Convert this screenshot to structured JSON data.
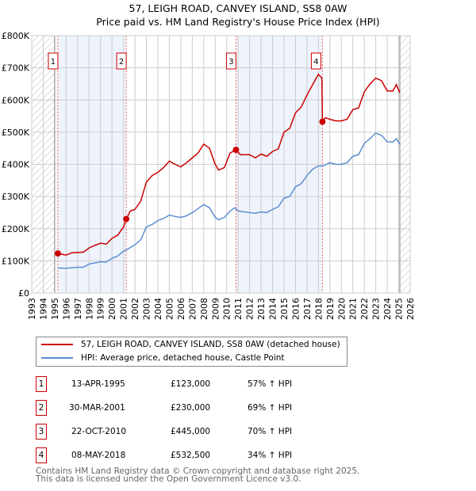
{
  "chart_data": {
    "type": "line",
    "title": "57, LEIGH ROAD, CANVEY ISLAND, SS8 0AW",
    "subtitle": "Price paid vs. HM Land Registry's House Price Index (HPI)",
    "xlim": [
      1993,
      2026
    ],
    "ylim": [
      0,
      800000
    ],
    "y_ticks": [
      {
        "v": 0,
        "label": "£0"
      },
      {
        "v": 100000,
        "label": "£100K"
      },
      {
        "v": 200000,
        "label": "£200K"
      },
      {
        "v": 300000,
        "label": "£300K"
      },
      {
        "v": 400000,
        "label": "£400K"
      },
      {
        "v": 500000,
        "label": "£500K"
      },
      {
        "v": 600000,
        "label": "£600K"
      },
      {
        "v": 700000,
        "label": "£700K"
      },
      {
        "v": 800000,
        "label": "£800K"
      }
    ],
    "x_ticks": [
      "1993",
      "1994",
      "1995",
      "1996",
      "1997",
      "1998",
      "1999",
      "2000",
      "2001",
      "2002",
      "2003",
      "2004",
      "2005",
      "2006",
      "2007",
      "2008",
      "2009",
      "2010",
      "2011",
      "2012",
      "2013",
      "2014",
      "2015",
      "2016",
      "2017",
      "2018",
      "2019",
      "2020",
      "2021",
      "2022",
      "2023",
      "2024",
      "2025",
      "2026"
    ],
    "grid": true,
    "hatched_ranges": [
      [
        1993,
        1995.0
      ],
      [
        2025.1,
        2026
      ]
    ],
    "shaded_ranges": [
      [
        1995.28,
        2001.24
      ],
      [
        2010.8,
        2018.35
      ]
    ],
    "series": [
      {
        "name": "57, LEIGH ROAD, CANVEY ISLAND, SS8 0AW (detached house)",
        "color": "#cc0000",
        "points": [
          [
            1995.28,
            123
          ],
          [
            1996,
            118
          ],
          [
            1996.5,
            125
          ],
          [
            1997.5,
            127
          ],
          [
            1998,
            140
          ],
          [
            1998.5,
            148
          ],
          [
            1999,
            155
          ],
          [
            1999.5,
            152
          ],
          [
            2000,
            170
          ],
          [
            2000.5,
            180
          ],
          [
            2001,
            205
          ],
          [
            2001.24,
            230
          ],
          [
            2001.6,
            255
          ],
          [
            2002,
            260
          ],
          [
            2002.5,
            285
          ],
          [
            2003,
            345
          ],
          [
            2003.5,
            365
          ],
          [
            2004,
            375
          ],
          [
            2004.5,
            390
          ],
          [
            2005,
            410
          ],
          [
            2005.5,
            400
          ],
          [
            2006,
            392
          ],
          [
            2006.5,
            405
          ],
          [
            2007,
            420
          ],
          [
            2007.5,
            435
          ],
          [
            2008,
            463
          ],
          [
            2008.5,
            450
          ],
          [
            2009,
            400
          ],
          [
            2009.3,
            382
          ],
          [
            2009.8,
            390
          ],
          [
            2010.3,
            435
          ],
          [
            2010.8,
            445
          ],
          [
            2011.2,
            430
          ],
          [
            2012,
            430
          ],
          [
            2012.5,
            420
          ],
          [
            2013,
            432
          ],
          [
            2013.5,
            425
          ],
          [
            2014,
            440
          ],
          [
            2014.5,
            448
          ],
          [
            2015,
            500
          ],
          [
            2015.5,
            512
          ],
          [
            2016,
            560
          ],
          [
            2016.5,
            578
          ],
          [
            2017,
            615
          ],
          [
            2017.5,
            648
          ],
          [
            2018,
            680
          ],
          [
            2018.3,
            668
          ],
          [
            2018.35,
            532.5
          ],
          [
            2018.6,
            545
          ],
          [
            2019,
            540
          ],
          [
            2019.5,
            535
          ],
          [
            2020,
            535
          ],
          [
            2020.5,
            540
          ],
          [
            2021,
            570
          ],
          [
            2021.5,
            575
          ],
          [
            2022,
            625
          ],
          [
            2022.5,
            650
          ],
          [
            2023,
            668
          ],
          [
            2023.5,
            660
          ],
          [
            2024,
            628
          ],
          [
            2024.5,
            628
          ],
          [
            2024.8,
            648
          ],
          [
            2025.1,
            622
          ]
        ]
      },
      {
        "name": "HPI: Average price, detached house, Castle Point",
        "color": "#5b8fd0",
        "points": [
          [
            1995.28,
            78
          ],
          [
            1996,
            77
          ],
          [
            1997,
            80
          ],
          [
            1997.5,
            80
          ],
          [
            1998,
            90
          ],
          [
            1999,
            97
          ],
          [
            1999.5,
            96
          ],
          [
            2000,
            108
          ],
          [
            2000.5,
            115
          ],
          [
            2001,
            130
          ],
          [
            2001.3,
            135
          ],
          [
            2002,
            150
          ],
          [
            2002.5,
            165
          ],
          [
            2003,
            205
          ],
          [
            2003.5,
            213
          ],
          [
            2004,
            225
          ],
          [
            2004.5,
            232
          ],
          [
            2005,
            242
          ],
          [
            2005.5,
            238
          ],
          [
            2006,
            235
          ],
          [
            2006.5,
            240
          ],
          [
            2007,
            250
          ],
          [
            2007.5,
            262
          ],
          [
            2008,
            275
          ],
          [
            2008.5,
            265
          ],
          [
            2009,
            235
          ],
          [
            2009.3,
            228
          ],
          [
            2009.8,
            235
          ],
          [
            2010.3,
            255
          ],
          [
            2010.7,
            265
          ],
          [
            2011,
            255
          ],
          [
            2012,
            250
          ],
          [
            2012.5,
            248
          ],
          [
            2013,
            252
          ],
          [
            2013.5,
            250
          ],
          [
            2014,
            260
          ],
          [
            2014.5,
            268
          ],
          [
            2015,
            295
          ],
          [
            2015.5,
            300
          ],
          [
            2016,
            330
          ],
          [
            2016.5,
            340
          ],
          [
            2017,
            365
          ],
          [
            2017.5,
            385
          ],
          [
            2018,
            395
          ],
          [
            2018.4,
            395
          ],
          [
            2019,
            405
          ],
          [
            2019.5,
            400
          ],
          [
            2020,
            400
          ],
          [
            2020.5,
            405
          ],
          [
            2021,
            425
          ],
          [
            2021.5,
            430
          ],
          [
            2022,
            465
          ],
          [
            2022.5,
            480
          ],
          [
            2023,
            497
          ],
          [
            2023.5,
            490
          ],
          [
            2024,
            470
          ],
          [
            2024.5,
            470
          ],
          [
            2024.8,
            480
          ],
          [
            2025.1,
            462
          ]
        ]
      }
    ],
    "transactions": [
      {
        "num": "1",
        "x": 1995.28,
        "price": 123000,
        "date": "13-APR-1995",
        "price_label": "£123,000",
        "hpi": "57% ↑ HPI"
      },
      {
        "num": "2",
        "x": 2001.24,
        "price": 230000,
        "date": "30-MAR-2001",
        "price_label": "£230,000",
        "hpi": "69% ↑ HPI"
      },
      {
        "num": "3",
        "x": 2010.81,
        "price": 445000,
        "date": "22-OCT-2010",
        "price_label": "£445,000",
        "hpi": "70% ↑ HPI"
      },
      {
        "num": "4",
        "x": 2018.35,
        "price": 532500,
        "date": "08-MAY-2018",
        "price_label": "£532,500",
        "hpi": "34% ↑ HPI"
      }
    ]
  },
  "legend": {
    "red_label": "57, LEIGH ROAD, CANVEY ISLAND, SS8 0AW (detached house)",
    "blue_label": "HPI: Average price, detached house, Castle Point"
  },
  "footer": {
    "line1": "Contains HM Land Registry data © Crown copyright and database right 2025.",
    "line2": "This data is licensed under the Open Government Licence v3.0."
  }
}
